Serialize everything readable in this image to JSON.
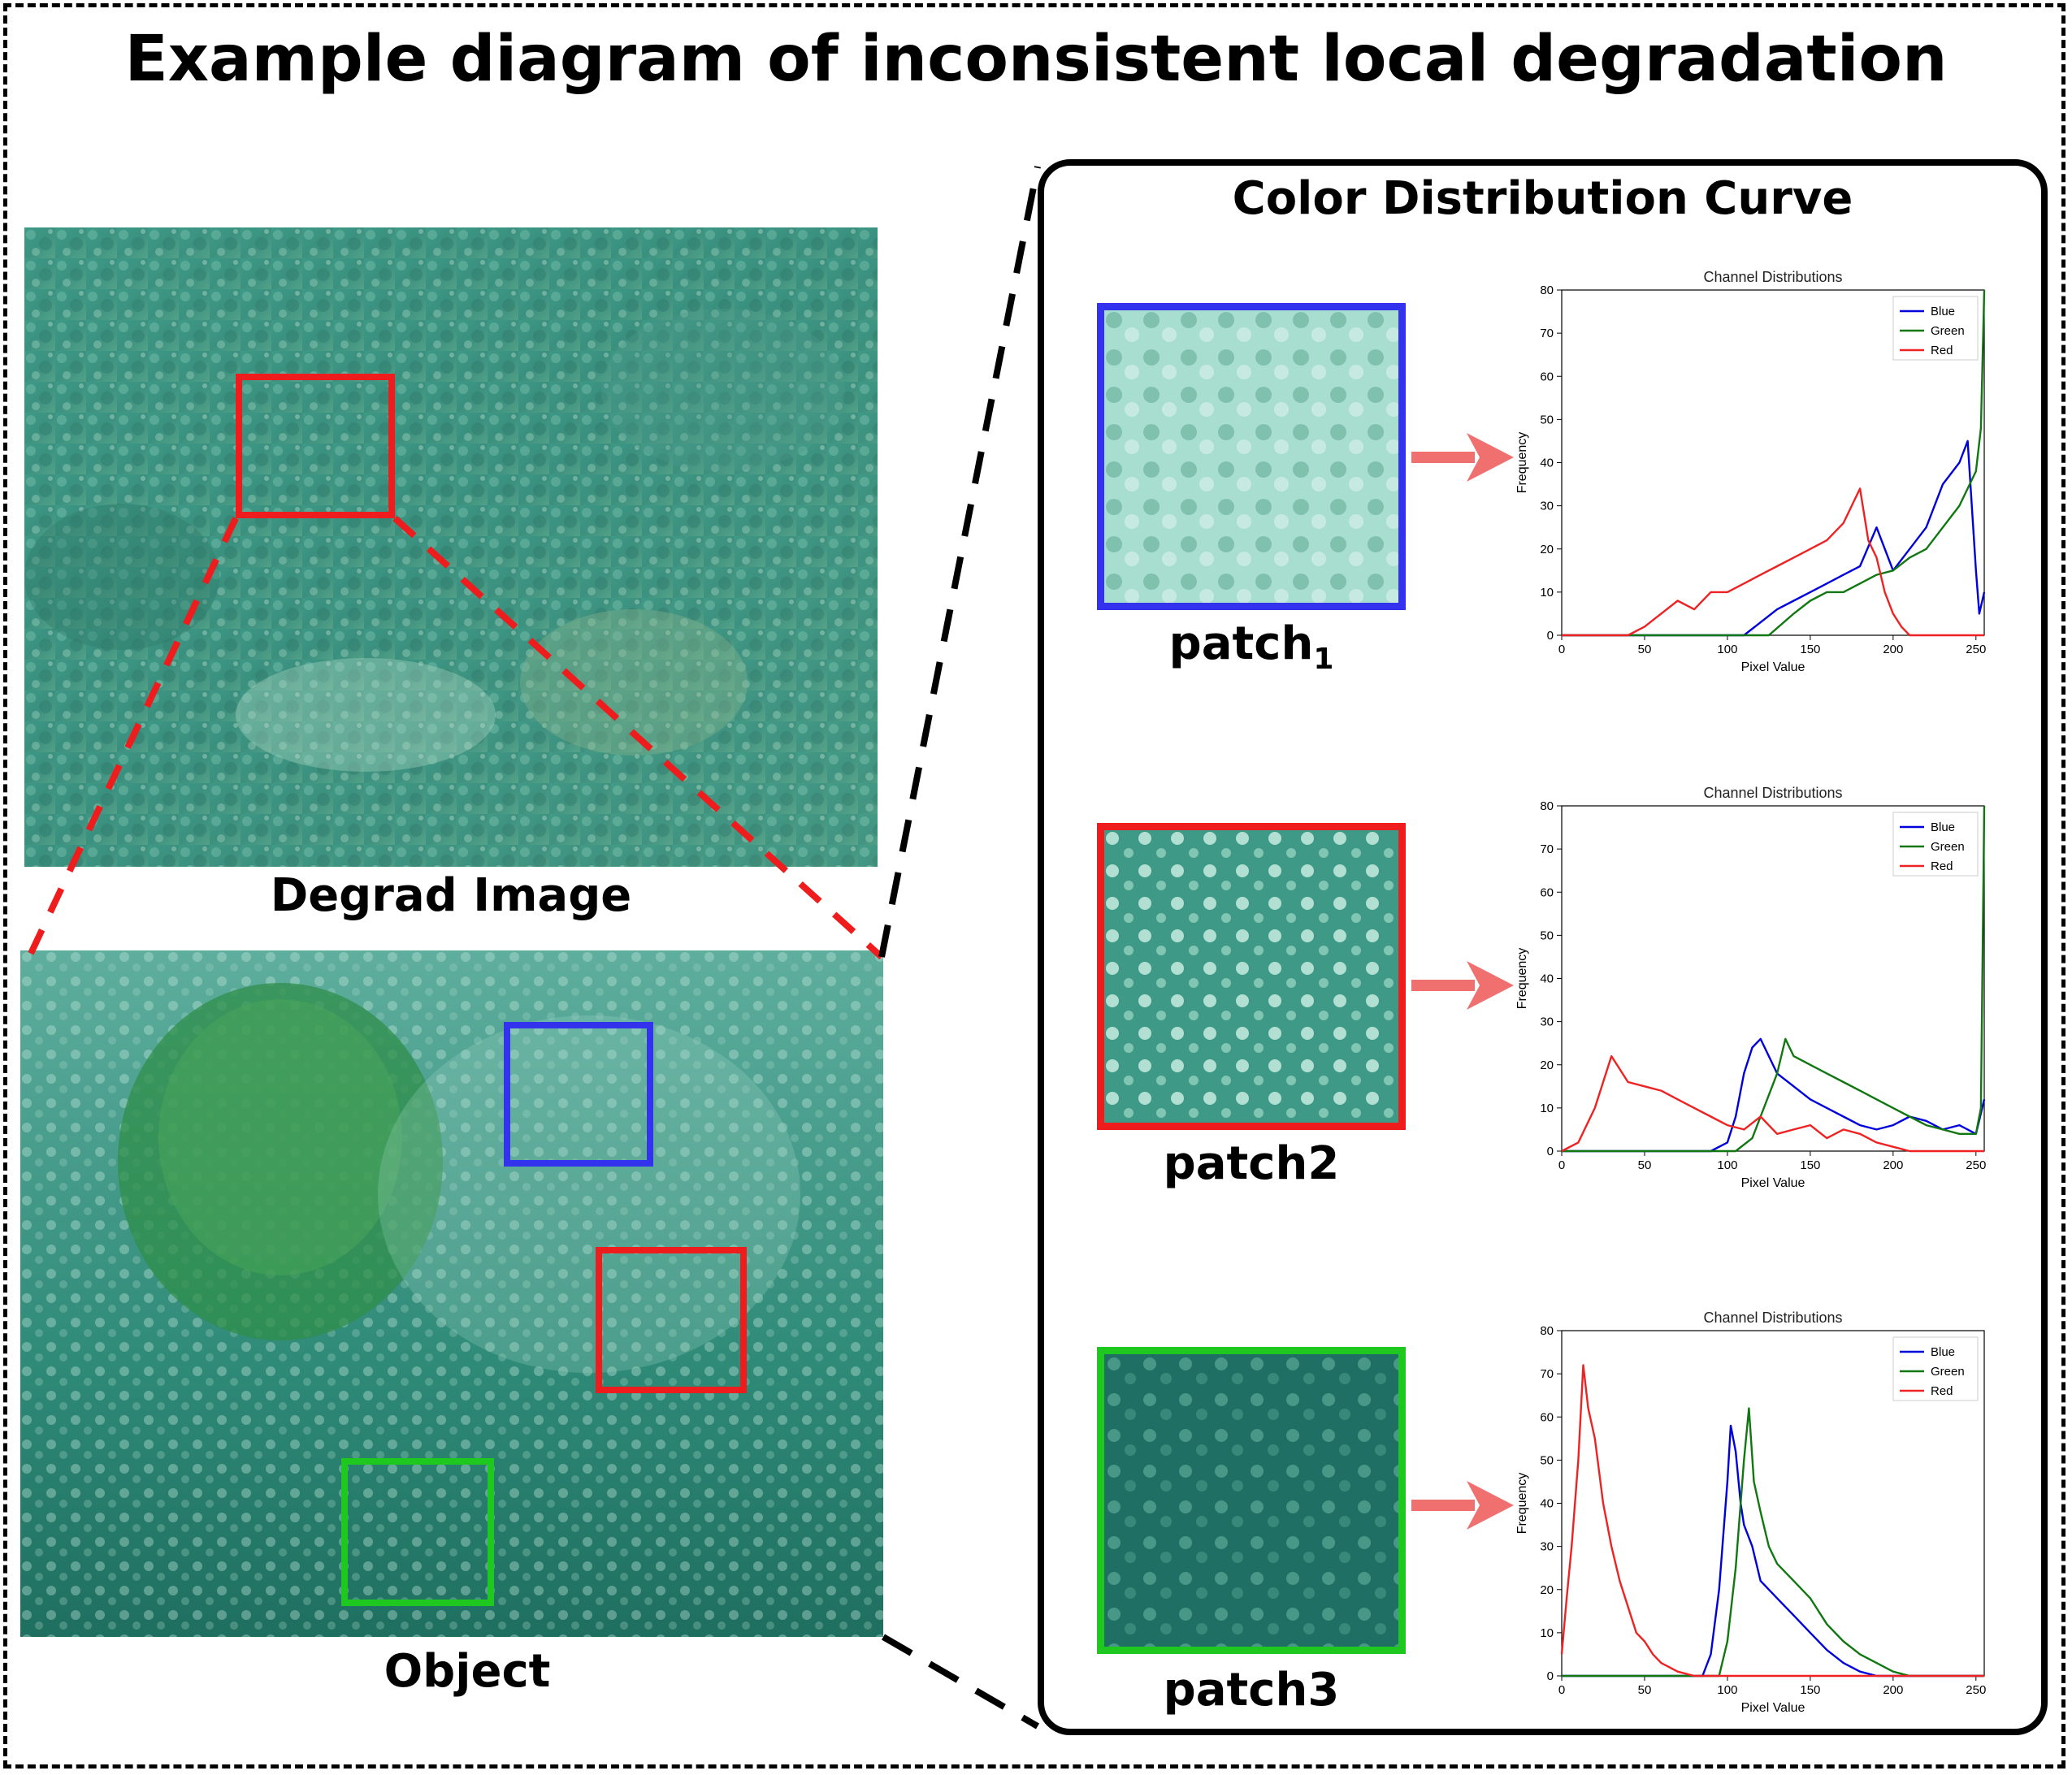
{
  "title": "Example diagram of inconsistent local degradation",
  "captions": {
    "degrad_image": "Degrad Image",
    "object": "Object"
  },
  "panel": {
    "title": "Color Distribution Curve"
  },
  "patches": [
    {
      "name": "patch",
      "subscript": "1",
      "color": "#3333ee"
    },
    {
      "name": "patch2",
      "subscript": "",
      "color": "#ee1c1c"
    },
    {
      "name": "patch3",
      "subscript": "",
      "color": "#1ec81e"
    }
  ],
  "colors": {
    "blue": "#0000dd",
    "green": "#117711",
    "red": "#ee2222",
    "arrow": "#f07070",
    "zoom_red": "#ee1c1c",
    "zoom_black": "#000000"
  },
  "chart_data": [
    {
      "type": "line",
      "title": "Channel Distributions",
      "xlabel": "Pixel Value",
      "ylabel": "Frequency",
      "xlim": [
        0,
        255
      ],
      "ylim": [
        0,
        80
      ],
      "xticks": [
        0,
        50,
        100,
        150,
        200,
        250
      ],
      "yticks": [
        0,
        10,
        20,
        30,
        40,
        50,
        60,
        70,
        80
      ],
      "legend": "top-right",
      "series": [
        {
          "name": "Blue",
          "color": "#0000dd",
          "x": [
            0,
            110,
            120,
            130,
            140,
            150,
            160,
            170,
            180,
            190,
            200,
            210,
            220,
            230,
            240,
            245,
            250,
            252,
            255
          ],
          "y": [
            0,
            0,
            3,
            6,
            8,
            10,
            12,
            14,
            16,
            25,
            15,
            20,
            25,
            35,
            40,
            45,
            15,
            5,
            10
          ]
        },
        {
          "name": "Green",
          "color": "#117711",
          "x": [
            0,
            125,
            140,
            150,
            160,
            170,
            180,
            190,
            200,
            210,
            220,
            230,
            240,
            250,
            253,
            255
          ],
          "y": [
            0,
            0,
            5,
            8,
            10,
            10,
            12,
            14,
            15,
            18,
            20,
            25,
            30,
            38,
            48,
            80
          ]
        },
        {
          "name": "Red",
          "color": "#ee2222",
          "x": [
            0,
            40,
            50,
            60,
            70,
            80,
            90,
            100,
            110,
            120,
            130,
            140,
            150,
            160,
            170,
            175,
            180,
            185,
            190,
            195,
            200,
            205,
            210,
            255
          ],
          "y": [
            0,
            0,
            2,
            5,
            8,
            6,
            10,
            10,
            12,
            14,
            16,
            18,
            20,
            22,
            26,
            30,
            34,
            22,
            18,
            10,
            5,
            2,
            0,
            0
          ]
        }
      ]
    },
    {
      "type": "line",
      "title": "Channel Distributions",
      "xlabel": "Pixel Value",
      "ylabel": "Frequency",
      "xlim": [
        0,
        255
      ],
      "ylim": [
        0,
        80
      ],
      "xticks": [
        0,
        50,
        100,
        150,
        200,
        250
      ],
      "yticks": [
        0,
        10,
        20,
        30,
        40,
        50,
        60,
        70,
        80
      ],
      "legend": "top-right",
      "series": [
        {
          "name": "Blue",
          "color": "#0000dd",
          "x": [
            0,
            90,
            100,
            105,
            110,
            115,
            120,
            125,
            130,
            140,
            150,
            160,
            170,
            180,
            190,
            200,
            210,
            220,
            230,
            240,
            250,
            255
          ],
          "y": [
            0,
            0,
            2,
            8,
            18,
            24,
            26,
            22,
            18,
            15,
            12,
            10,
            8,
            6,
            5,
            6,
            8,
            7,
            5,
            6,
            4,
            12
          ]
        },
        {
          "name": "Green",
          "color": "#117711",
          "x": [
            0,
            105,
            115,
            120,
            130,
            135,
            140,
            150,
            160,
            170,
            180,
            190,
            200,
            210,
            220,
            230,
            240,
            250,
            253,
            255
          ],
          "y": [
            0,
            0,
            3,
            8,
            18,
            26,
            22,
            20,
            18,
            16,
            14,
            12,
            10,
            8,
            6,
            5,
            4,
            4,
            10,
            80
          ]
        },
        {
          "name": "Red",
          "color": "#ee2222",
          "x": [
            0,
            10,
            20,
            30,
            40,
            50,
            60,
            70,
            80,
            90,
            100,
            110,
            120,
            130,
            140,
            150,
            160,
            170,
            180,
            190,
            200,
            210,
            220,
            255
          ],
          "y": [
            0,
            2,
            10,
            22,
            16,
            15,
            14,
            12,
            10,
            8,
            6,
            5,
            8,
            4,
            5,
            6,
            3,
            5,
            4,
            2,
            1,
            0,
            0,
            0
          ]
        }
      ]
    },
    {
      "type": "line",
      "title": "Channel Distributions",
      "xlabel": "Pixel Value",
      "ylabel": "Frequency",
      "xlim": [
        0,
        255
      ],
      "ylim": [
        0,
        80
      ],
      "xticks": [
        0,
        50,
        100,
        150,
        200,
        250
      ],
      "yticks": [
        0,
        10,
        20,
        30,
        40,
        50,
        60,
        70,
        80
      ],
      "legend": "top-right",
      "series": [
        {
          "name": "Blue",
          "color": "#0000dd",
          "x": [
            0,
            85,
            90,
            95,
            100,
            102,
            105,
            108,
            110,
            115,
            120,
            130,
            140,
            150,
            160,
            170,
            180,
            190,
            255
          ],
          "y": [
            0,
            0,
            5,
            20,
            45,
            58,
            52,
            40,
            35,
            30,
            22,
            18,
            14,
            10,
            6,
            3,
            1,
            0,
            0
          ]
        },
        {
          "name": "Green",
          "color": "#117711",
          "x": [
            0,
            95,
            100,
            105,
            110,
            113,
            116,
            120,
            125,
            130,
            140,
            150,
            160,
            170,
            180,
            190,
            200,
            210,
            255
          ],
          "y": [
            0,
            0,
            8,
            25,
            50,
            62,
            45,
            38,
            30,
            26,
            22,
            18,
            12,
            8,
            5,
            3,
            1,
            0,
            0
          ]
        },
        {
          "name": "Red",
          "color": "#ee2222",
          "x": [
            0,
            3,
            6,
            10,
            13,
            16,
            20,
            25,
            30,
            35,
            40,
            45,
            50,
            55,
            60,
            70,
            80,
            255
          ],
          "y": [
            5,
            18,
            30,
            50,
            72,
            62,
            55,
            40,
            30,
            22,
            16,
            10,
            8,
            5,
            3,
            1,
            0,
            0
          ]
        }
      ]
    }
  ]
}
